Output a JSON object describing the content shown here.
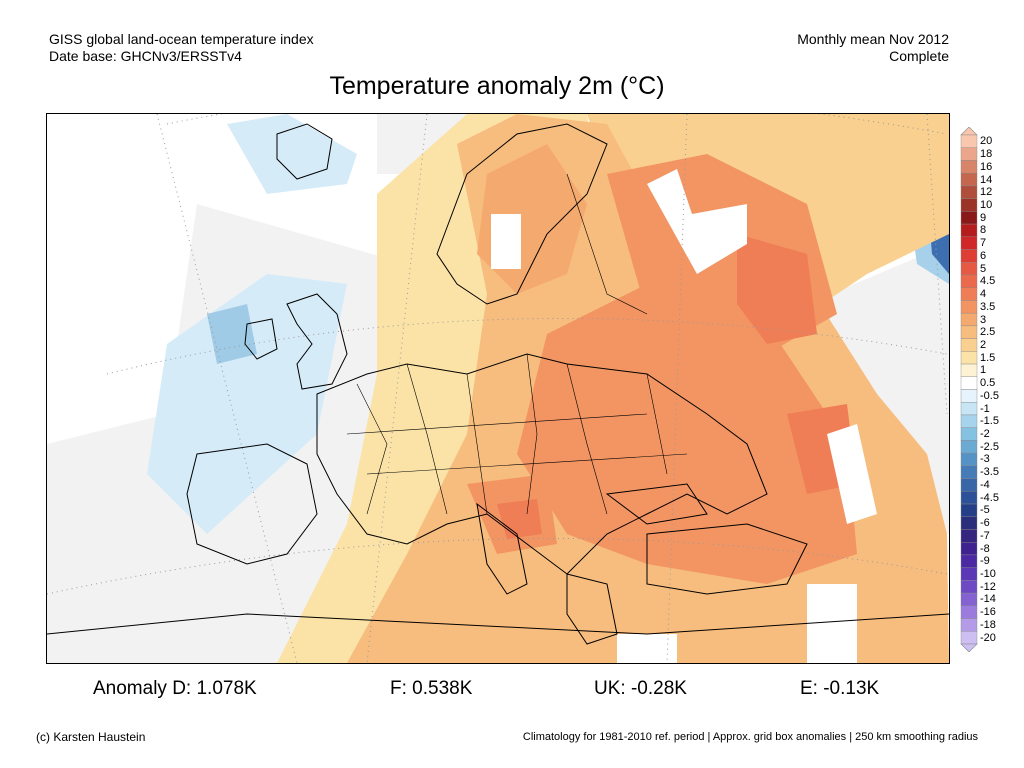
{
  "header": {
    "left_line1": "GISS global land-ocean temperature index",
    "left_line2": "Date base: GHCNv3/ERSSTv4",
    "right_line1": "Monthly mean Nov 2012",
    "right_line2": "Complete"
  },
  "title": "Temperature anomaly 2m (°C)",
  "legend": {
    "levels": [
      "20",
      "18",
      "16",
      "14",
      "12",
      "10",
      "9",
      "8",
      "7",
      "6",
      "5",
      "4.5",
      "4",
      "3.5",
      "3",
      "2.5",
      "2",
      "1.5",
      "1",
      "0.5",
      "-0.5",
      "-1",
      "-1.5",
      "-2",
      "-2.5",
      "-3",
      "-3.5",
      "-4",
      "-4.5",
      "-5",
      "-6",
      "-7",
      "-8",
      "-9",
      "-10",
      "-12",
      "-14",
      "-16",
      "-18",
      "-20"
    ],
    "colors": [
      "#f8c7ad",
      "#eba58a",
      "#d88468",
      "#c4674e",
      "#b04e3c",
      "#9b3327",
      "#8a1818",
      "#b51c1c",
      "#d02828",
      "#df3e35",
      "#e65a44",
      "#ec6a4c",
      "#ef7d55",
      "#f29563",
      "#f4a96f",
      "#f7bd7e",
      "#f9d08f",
      "#fbe3a8",
      "#fdf2d4",
      "#ffffff",
      "#e6f2fc",
      "#c8e5f5",
      "#a6d4ec",
      "#85c1e0",
      "#6aaad3",
      "#5592c5",
      "#457bb6",
      "#3866a7",
      "#2d5198",
      "#243f88",
      "#2b2e7a",
      "#35257f",
      "#3f2190",
      "#4a29a3",
      "#5a38b6",
      "#6d4ac4",
      "#8462d2",
      "#9b7cde",
      "#b39be8",
      "#cdbff2"
    ]
  },
  "stats": {
    "anomaly_d": "Anomaly D: 1.078K",
    "f": "F: 0.538K",
    "uk": "UK: -0.28K",
    "e": "E: -0.13K"
  },
  "footer": {
    "copyright": "(c) Karsten Haustein",
    "note": "Climatology for 1981-2010 ref. period | Approx. grid box anomalies | 250 km smoothing radius"
  }
}
